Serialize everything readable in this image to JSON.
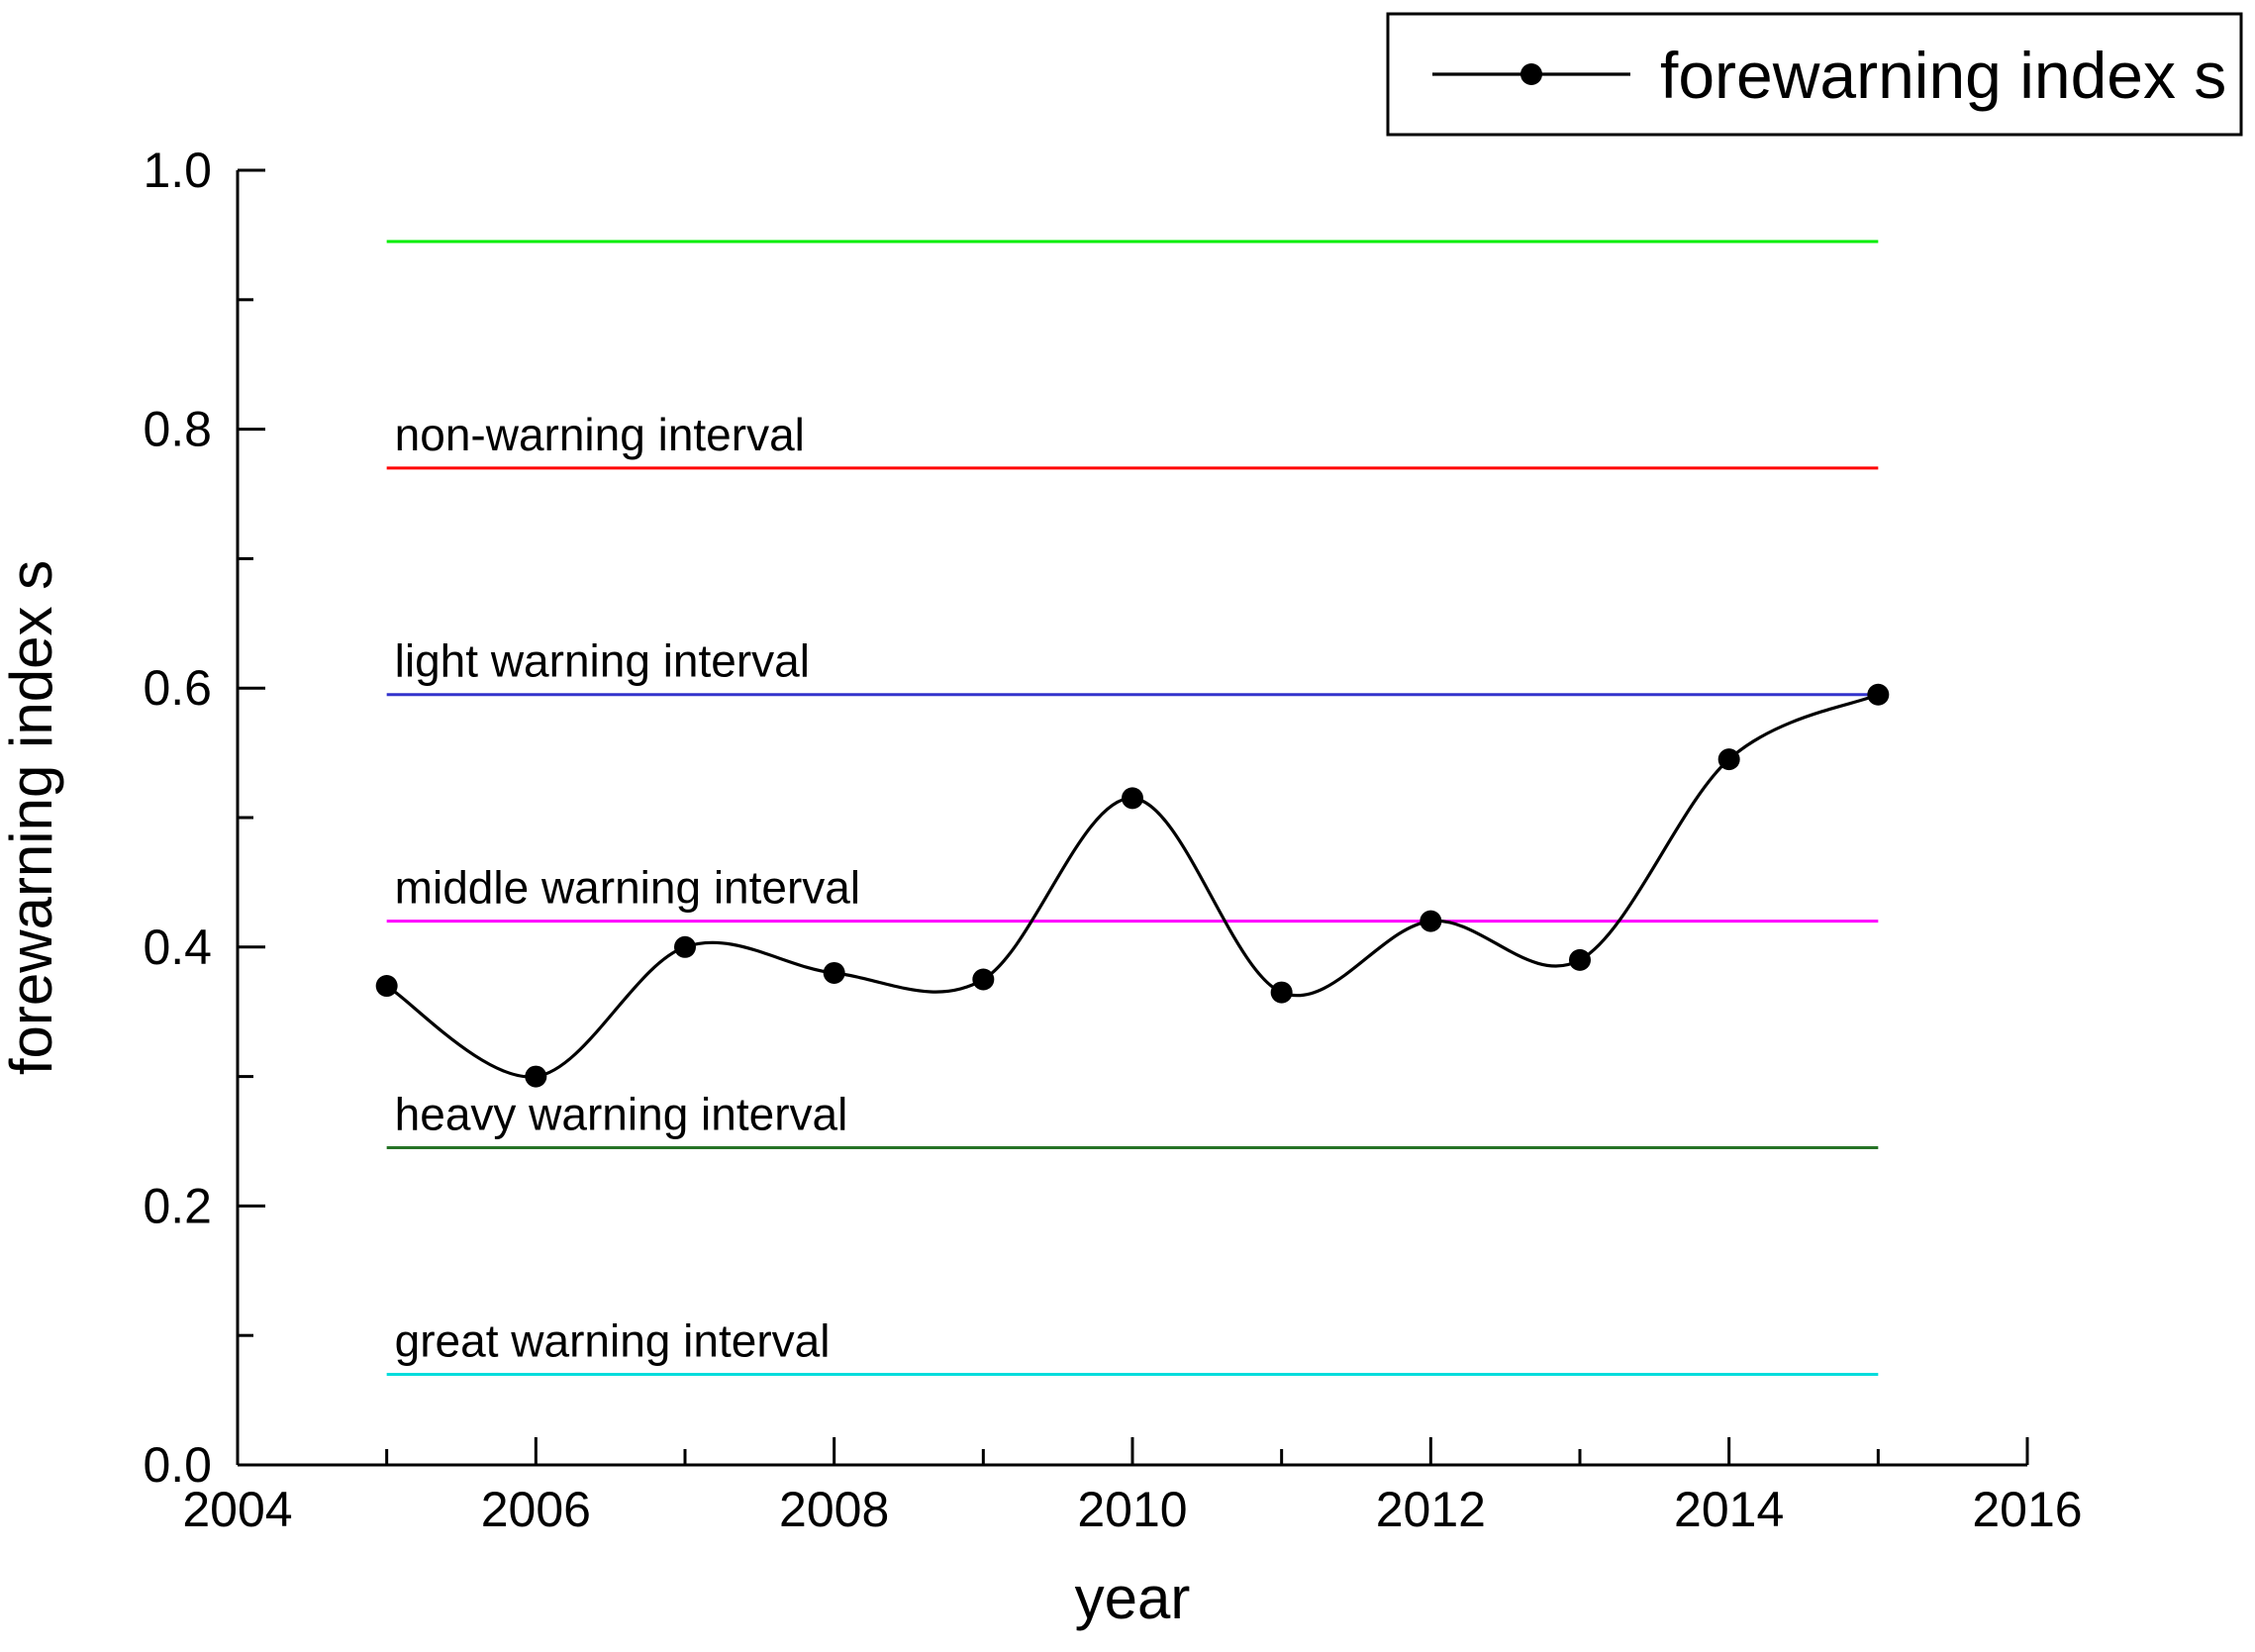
{
  "figure": {
    "background": "#ffffff",
    "axis_color": "#000000"
  },
  "chart_data": {
    "type": "line",
    "title": "",
    "xlabel": "year",
    "ylabel": "forewarning index s",
    "xlim": [
      2004,
      2016
    ],
    "ylim": [
      0.0,
      1.0
    ],
    "grid": false,
    "x_major_ticks": [
      {
        "v": 2004,
        "label": "2004"
      },
      {
        "v": 2006,
        "label": "2006"
      },
      {
        "v": 2008,
        "label": "2008"
      },
      {
        "v": 2010,
        "label": "2010"
      },
      {
        "v": 2012,
        "label": "2012"
      },
      {
        "v": 2014,
        "label": "2014"
      },
      {
        "v": 2016,
        "label": "2016"
      }
    ],
    "x_minor_ticks": [
      2005,
      2007,
      2009,
      2011,
      2013,
      2015
    ],
    "y_major_ticks": [
      {
        "v": 0.0,
        "label": "0.0"
      },
      {
        "v": 0.2,
        "label": "0.2"
      },
      {
        "v": 0.4,
        "label": "0.4"
      },
      {
        "v": 0.6,
        "label": "0.6"
      },
      {
        "v": 0.8,
        "label": "0.8"
      },
      {
        "v": 1.0,
        "label": "1.0"
      }
    ],
    "y_minor_ticks": [
      0.1,
      0.3,
      0.5,
      0.7,
      0.9
    ],
    "legend": {
      "position": "top-right",
      "entries": [
        {
          "label": "forewarning index s",
          "color": "#000000",
          "marker": "circle"
        }
      ]
    },
    "series": [
      {
        "name": "forewarning index s",
        "color": "#000000",
        "marker": "circle",
        "smooth": true,
        "x": [
          2005,
          2006,
          2007,
          2008,
          2009,
          2010,
          2011,
          2012,
          2013,
          2014,
          2015
        ],
        "y": [
          0.37,
          0.3,
          0.4,
          0.38,
          0.375,
          0.515,
          0.365,
          0.42,
          0.39,
          0.545,
          0.595
        ]
      }
    ],
    "reference_lines": [
      {
        "y": 0.945,
        "color": "#00ee00",
        "label": ""
      },
      {
        "y": 0.77,
        "color": "#ff0000",
        "label": "non-warning interval"
      },
      {
        "y": 0.595,
        "color": "#3333cc",
        "label": "light warning interval"
      },
      {
        "y": 0.42,
        "color": "#ff00ff",
        "label": "middle warning interval"
      },
      {
        "y": 0.245,
        "color": "#267326",
        "label": "heavy warning interval"
      },
      {
        "y": 0.07,
        "color": "#00dddd",
        "label": "great warning interval"
      }
    ],
    "ref_line_span": [
      2005,
      2015
    ]
  }
}
